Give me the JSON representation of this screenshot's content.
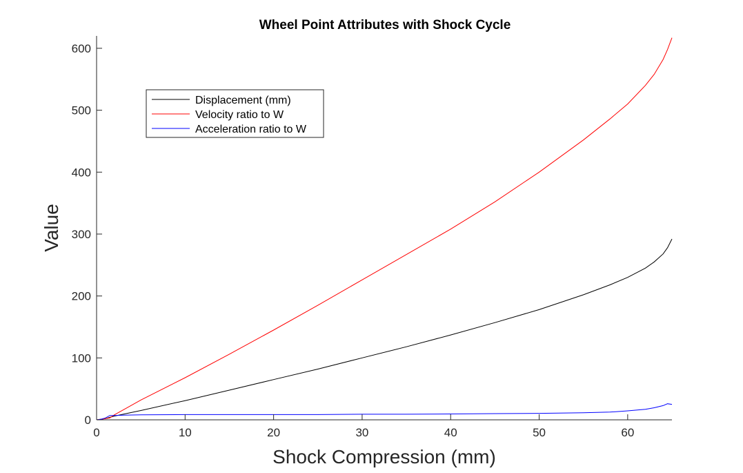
{
  "chart_data": {
    "type": "line",
    "title": "Wheel Point Attributes with Shock Cycle",
    "xlabel": "Shock Compression (mm)",
    "ylabel": "Value",
    "xlim": [
      0,
      65
    ],
    "ylim": [
      0,
      620
    ],
    "xticks": [
      0,
      10,
      20,
      30,
      40,
      50,
      60
    ],
    "yticks": [
      0,
      100,
      200,
      300,
      400,
      500,
      600
    ],
    "grid": false,
    "legend_position": "top-left",
    "series": [
      {
        "name": "Displacement (mm)",
        "color": "#000000",
        "x": [
          0,
          0.5,
          1,
          1.5,
          2,
          3,
          5,
          10,
          15,
          20,
          25,
          30,
          35,
          40,
          45,
          50,
          55,
          58,
          60,
          62,
          63,
          64,
          64.5,
          65
        ],
        "y": [
          0,
          1,
          2,
          4,
          6,
          9,
          15,
          31,
          48,
          65,
          82,
          100,
          118,
          137,
          157,
          178,
          202,
          218,
          230,
          245,
          255,
          268,
          278,
          292
        ]
      },
      {
        "name": "Velocity ratio to W",
        "color": "#ff0000",
        "x": [
          0,
          0.5,
          1,
          1.5,
          2,
          3,
          5,
          10,
          15,
          20,
          25,
          30,
          35,
          40,
          45,
          50,
          55,
          58,
          60,
          62,
          63,
          64,
          64.5,
          65
        ],
        "y": [
          0,
          1,
          2,
          3,
          8,
          16,
          32,
          68,
          106,
          145,
          185,
          226,
          267,
          308,
          352,
          400,
          452,
          486,
          510,
          540,
          558,
          582,
          598,
          617
        ]
      },
      {
        "name": "Acceleration ratio to W",
        "color": "#0000ff",
        "x": [
          0,
          0.5,
          1,
          1.5,
          2,
          3,
          5,
          10,
          15,
          20,
          25,
          30,
          35,
          40,
          45,
          50,
          55,
          58,
          60,
          62,
          63,
          64,
          64.5,
          65
        ],
        "y": [
          0,
          1,
          3,
          7,
          7,
          7.5,
          8,
          8.5,
          8.5,
          8.5,
          8.5,
          9,
          9,
          9.5,
          10,
          10.5,
          11.5,
          12.5,
          14.5,
          17,
          19.5,
          23,
          26,
          25
        ]
      }
    ]
  }
}
